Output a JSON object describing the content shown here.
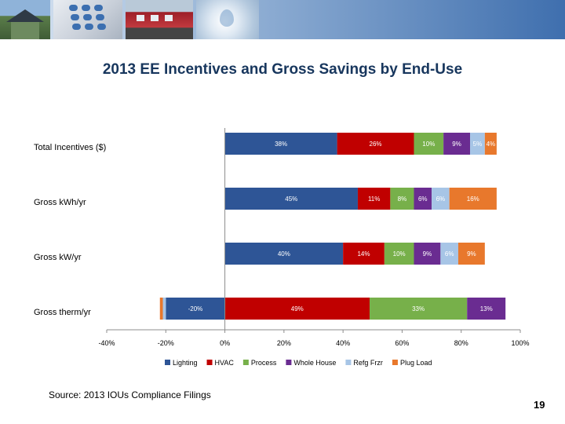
{
  "header": {
    "images": [
      "house-photo",
      "phone-keypad-photo",
      "train-photo",
      "water-drop-photo"
    ]
  },
  "slide": {
    "title": "2013 EE Incentives and Gross Savings by End-Use",
    "source": "Source: 2013 IOUs Compliance Filings",
    "page_number": "19"
  },
  "colors": {
    "Lighting": "#2e5596",
    "HVAC": "#c00000",
    "Process": "#77b04a",
    "Whole House": "#6a2c91",
    "Refg Frzr": "#a7c5e6",
    "Plug Load": "#e8782c"
  },
  "chart_data": {
    "type": "bar",
    "orientation": "horizontal",
    "stacked": true,
    "title": "2013 EE Incentives and Gross Savings by End-Use",
    "categories": [
      "Total Incentives ($)",
      "Gross kWh/yr",
      "Gross kW/yr",
      "Gross therm/yr"
    ],
    "series": [
      {
        "name": "Lighting",
        "values": [
          38,
          45,
          40,
          -20
        ],
        "labels": [
          "38%",
          "45%",
          "40%",
          "-20%"
        ]
      },
      {
        "name": "HVAC",
        "values": [
          26,
          11,
          14,
          49
        ],
        "labels": [
          "26%",
          "11%",
          "14%",
          "49%"
        ]
      },
      {
        "name": "Process",
        "values": [
          10,
          8,
          10,
          33
        ],
        "labels": [
          "10%",
          "8%",
          "10%",
          "33%"
        ]
      },
      {
        "name": "Whole House",
        "values": [
          9,
          6,
          9,
          13
        ],
        "labels": [
          "9%",
          "6%",
          "9%",
          "13%"
        ]
      },
      {
        "name": "Refg Frzr",
        "values": [
          5,
          6,
          6,
          -1
        ],
        "labels": [
          "5%",
          "6%",
          "6%",
          ""
        ]
      },
      {
        "name": "Plug Load",
        "values": [
          4,
          16,
          9,
          -1
        ],
        "labels": [
          "4%",
          "16%",
          "9%",
          ""
        ]
      }
    ],
    "xlim": [
      -40,
      100
    ],
    "xticks": [
      -40,
      -20,
      0,
      20,
      40,
      60,
      80,
      100
    ],
    "xtick_labels": [
      "-40%",
      "-20%",
      "0%",
      "20%",
      "40%",
      "60%",
      "80%",
      "100%"
    ],
    "legend": [
      "Lighting",
      "HVAC",
      "Process",
      "Whole House",
      "Refg Frzr",
      "Plug Load"
    ],
    "legend_position": "bottom",
    "xlabel": "",
    "ylabel": ""
  }
}
